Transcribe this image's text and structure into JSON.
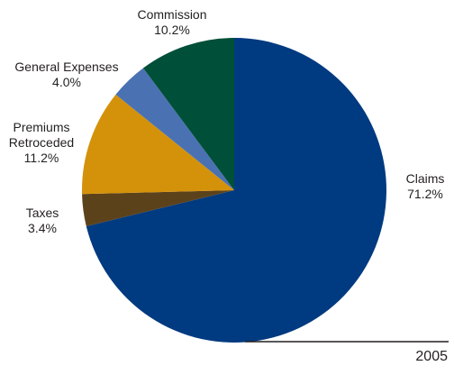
{
  "chart_data": {
    "type": "pie",
    "year": "2005",
    "slices": [
      {
        "name": "Claims",
        "value": 71.2,
        "value_label": "71.2%",
        "color": "#003a80"
      },
      {
        "name": "Taxes",
        "value": 3.4,
        "value_label": "3.4%",
        "color": "#5c421b"
      },
      {
        "name": "Premiums Retroceded",
        "value": 11.2,
        "value_label": "11.2%",
        "color": "#d4920b"
      },
      {
        "name": "General Expenses",
        "value": 4.0,
        "value_label": "4.0%",
        "color": "#4a72b2"
      },
      {
        "name": "Commission",
        "value": 10.2,
        "value_label": "10.2%",
        "color": "#004f38"
      }
    ],
    "start": "12 o'clock",
    "direction": "clockwise",
    "legend": "none"
  }
}
